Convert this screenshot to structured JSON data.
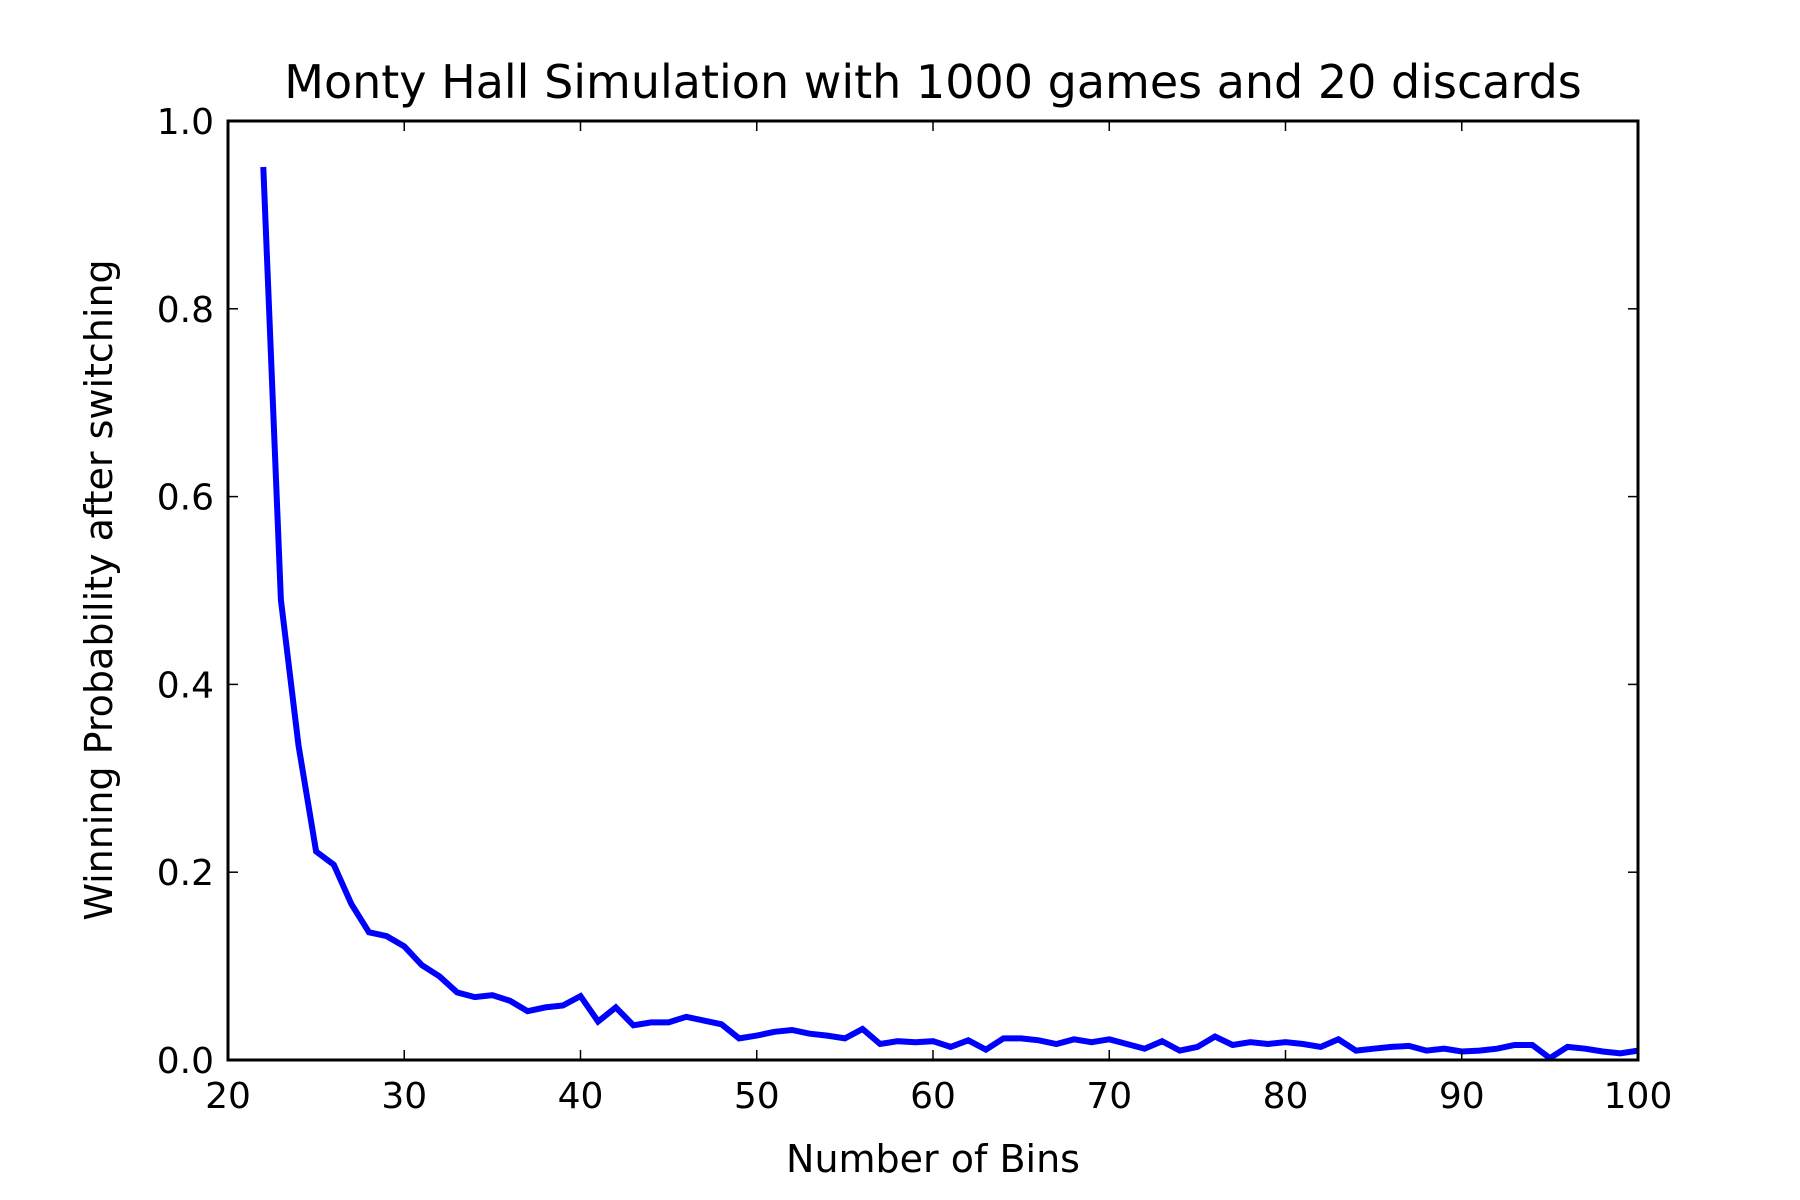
{
  "chart_data": {
    "type": "line",
    "title": "Monty Hall Simulation with 1000 games and 20 discards",
    "xlabel": "Number of Bins",
    "ylabel": "Winning Probability after switching",
    "xlim": [
      20,
      100
    ],
    "ylim": [
      0.0,
      1.0
    ],
    "xticks": [
      "20",
      "30",
      "40",
      "50",
      "60",
      "70",
      "80",
      "90",
      "100"
    ],
    "yticks": [
      "0.0",
      "0.2",
      "0.4",
      "0.6",
      "0.8",
      "1.0"
    ],
    "grid": false,
    "line_color": "#0000ff",
    "series": [
      {
        "x": [
          22,
          23,
          24,
          25,
          26,
          27,
          28,
          29,
          30,
          31,
          32,
          33,
          34,
          35,
          36,
          37,
          38,
          39,
          40,
          41,
          42,
          43,
          44,
          45,
          46,
          47,
          48,
          49,
          50,
          51,
          52,
          53,
          54,
          55,
          56,
          57,
          58,
          59,
          60,
          61,
          62,
          63,
          64,
          65,
          66,
          67,
          68,
          69,
          70,
          71,
          72,
          73,
          74,
          75,
          76,
          77,
          78,
          79,
          80,
          81,
          82,
          83,
          84,
          85,
          86,
          87,
          88,
          89,
          90,
          91,
          92,
          93,
          94,
          95,
          96,
          97,
          98,
          99,
          100
        ],
        "y": [
          0.951,
          0.49,
          0.335,
          0.222,
          0.208,
          0.166,
          0.136,
          0.132,
          0.121,
          0.101,
          0.089,
          0.072,
          0.067,
          0.069,
          0.063,
          0.052,
          0.056,
          0.058,
          0.068,
          0.041,
          0.056,
          0.037,
          0.04,
          0.04,
          0.046,
          0.042,
          0.038,
          0.023,
          0.026,
          0.03,
          0.032,
          0.028,
          0.026,
          0.023,
          0.033,
          0.017,
          0.02,
          0.019,
          0.02,
          0.014,
          0.021,
          0.011,
          0.023,
          0.023,
          0.021,
          0.017,
          0.022,
          0.019,
          0.022,
          0.017,
          0.012,
          0.02,
          0.01,
          0.014,
          0.025,
          0.016,
          0.019,
          0.017,
          0.019,
          0.017,
          0.014,
          0.022,
          0.01,
          0.012,
          0.014,
          0.015,
          0.01,
          0.012,
          0.009,
          0.01,
          0.012,
          0.016,
          0.016,
          0.002,
          0.014,
          0.012,
          0.009,
          0.007,
          0.01
        ]
      }
    ]
  }
}
